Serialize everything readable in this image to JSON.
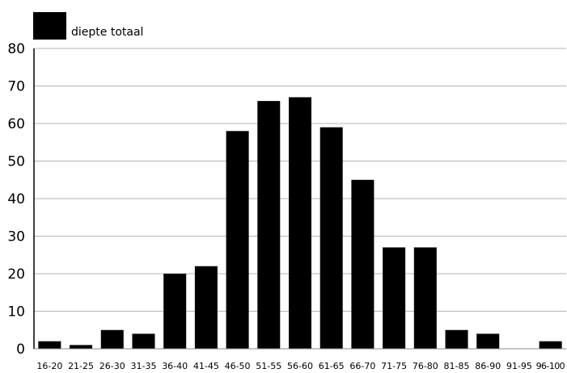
{
  "chart_data": {
    "type": "bar",
    "title": "",
    "xlabel": "",
    "ylabel": "",
    "categories": [
      "16-20",
      "21-25",
      "26-30",
      "31-35",
      "36-40",
      "41-45",
      "46-50",
      "51-55",
      "56-60",
      "61-65",
      "66-70",
      "71-75",
      "76-80",
      "81-85",
      "86-90",
      "91-95",
      "96-100"
    ],
    "series": [
      {
        "name": "diepte totaal",
        "values": [
          2,
          1,
          5,
          4,
          20,
          22,
          58,
          66,
          67,
          59,
          45,
          27,
          27,
          5,
          4,
          0,
          2
        ],
        "color": "#000000"
      }
    ],
    "ylim": [
      0,
      80
    ],
    "yticks": [
      0,
      10,
      20,
      30,
      40,
      50,
      60,
      70,
      80
    ],
    "grid": true,
    "legend_position": "top-left"
  }
}
